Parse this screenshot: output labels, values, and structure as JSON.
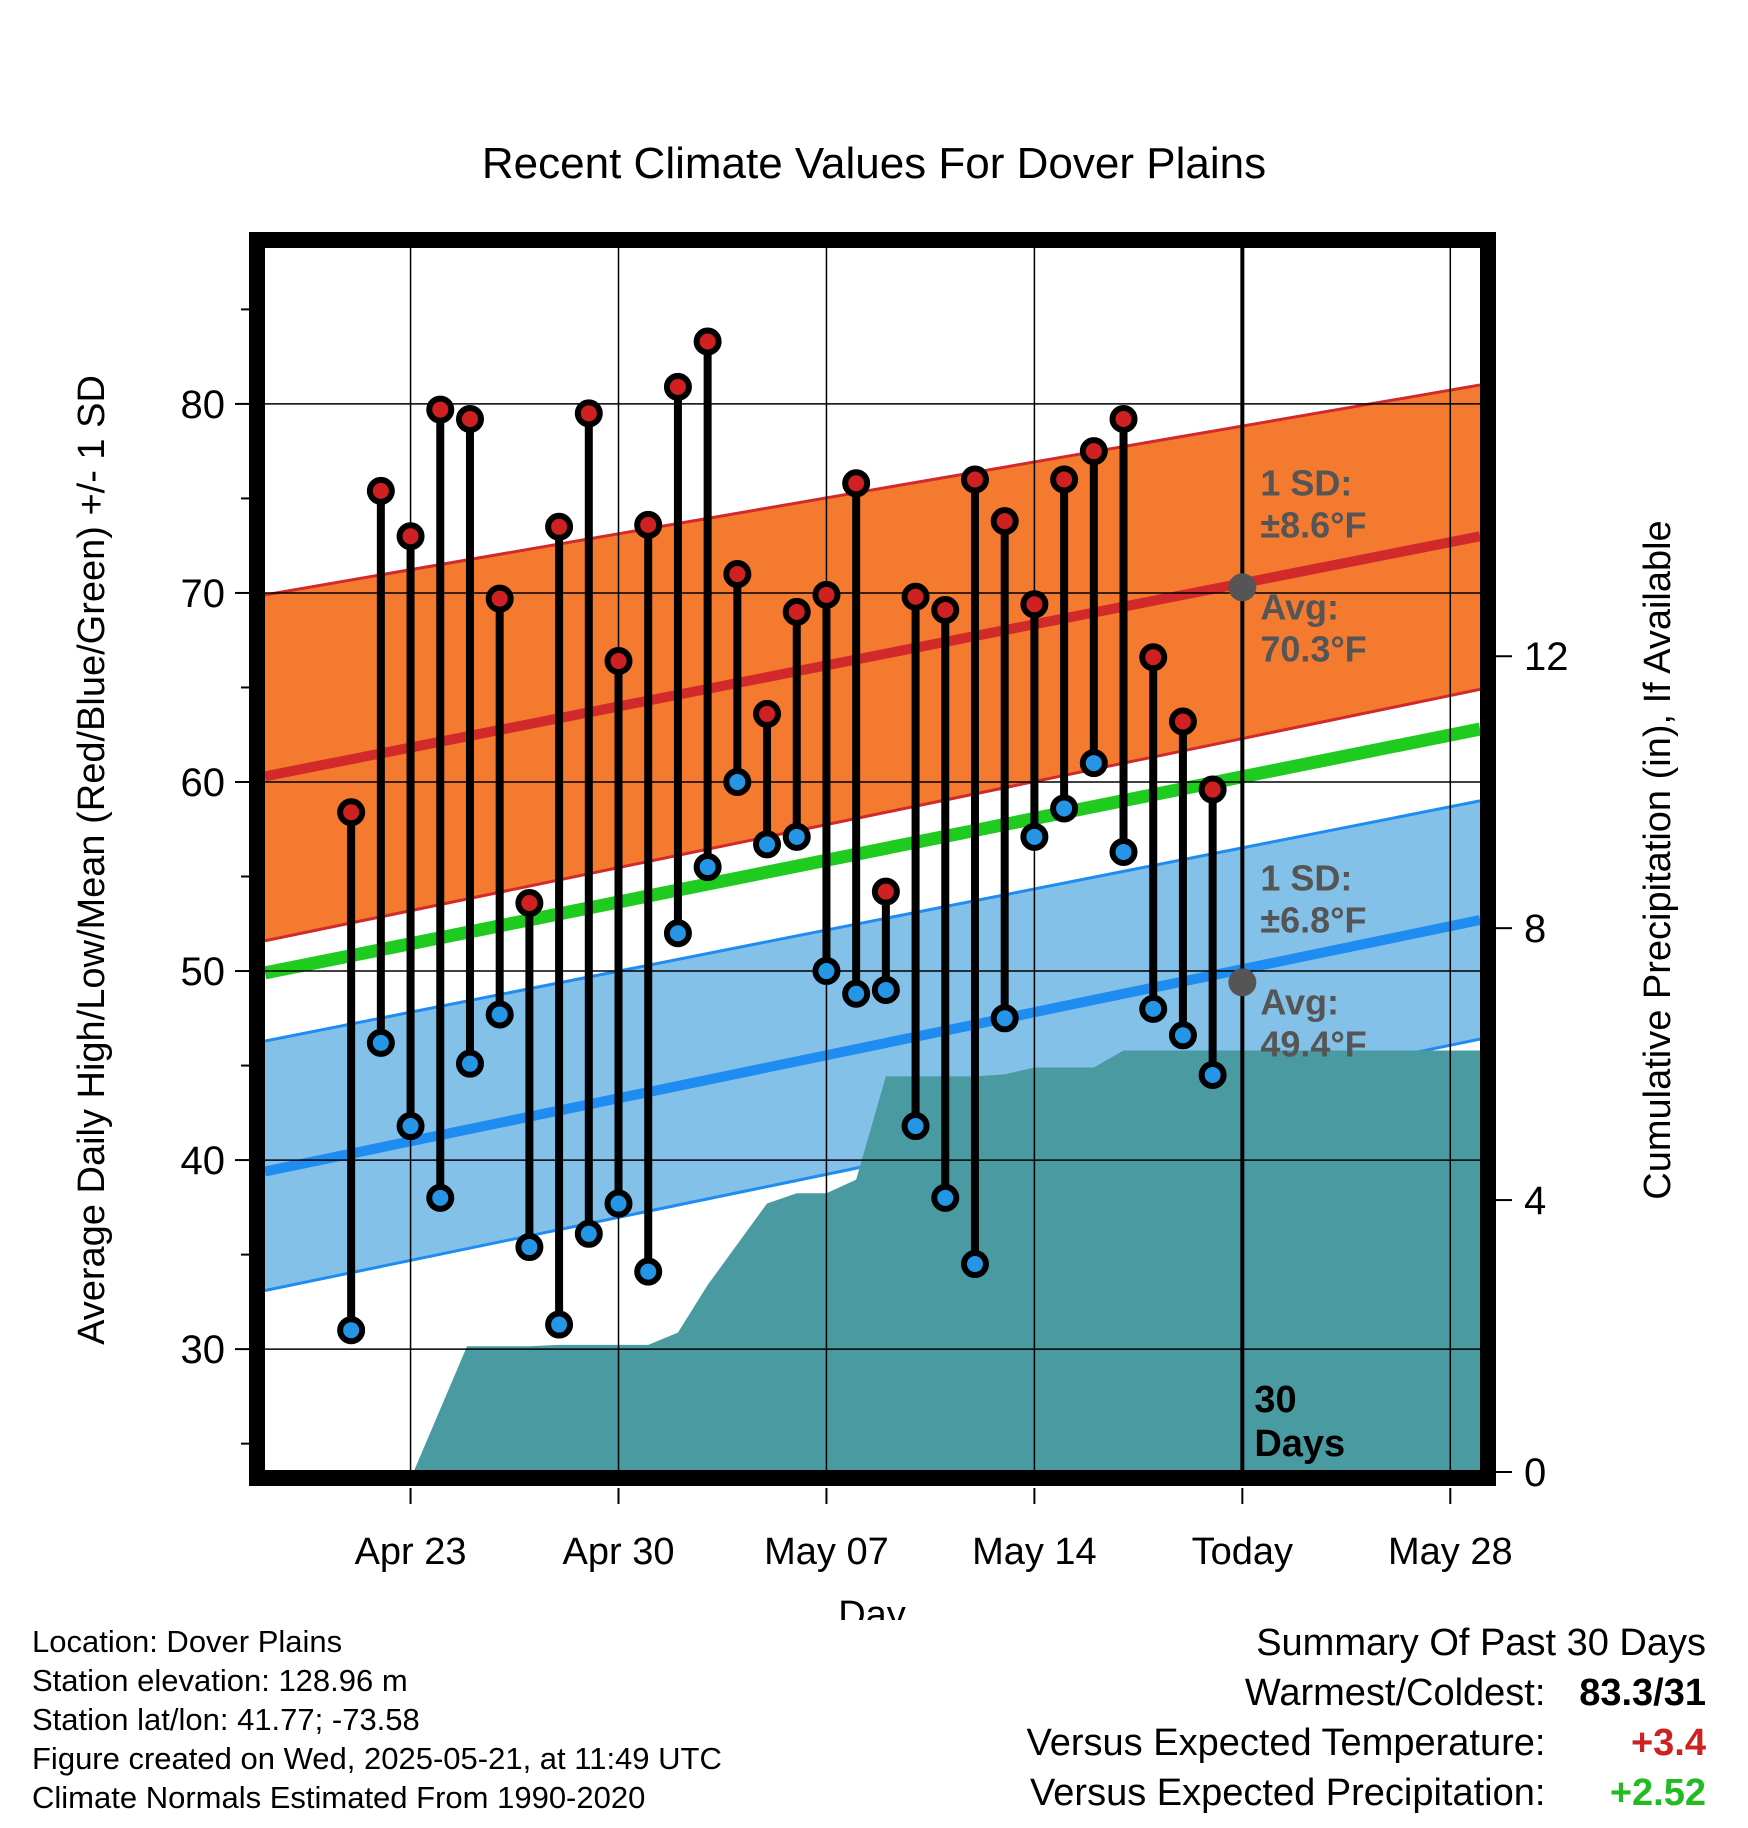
{
  "title": "Recent Climate Values For Dover Plains",
  "colors": {
    "high_band": "#f47a30",
    "high_line": "#d22a2a",
    "low_band": "#83c1e8",
    "low_line": "#1e8cf0",
    "mean_line": "#1ecb1e",
    "precip": "#4a9aa2",
    "high_marker": "#cf2121",
    "low_marker": "#2596e6",
    "stat_marker": "#555555",
    "annot_text": "#555555",
    "positive_temp": "#cf2121",
    "positive_precip": "#22bb22"
  },
  "chart_data": {
    "type": "line",
    "title": "Recent Climate Values For Dover Plains",
    "xlabel": "Day",
    "ylabel": "Average Daily High/Low/Mean (Red/Blue/Green) +/- 1 SD",
    "y2label": "Cumulative Precipitation (in), If Available",
    "xlim": [
      -2.9,
      38.0
    ],
    "ylim": [
      23.5,
      88.3
    ],
    "y2lim": [
      0,
      18.02
    ],
    "grid": true,
    "x_unit": "days relative to Apr 21",
    "x_ticks": [
      {
        "x": 2,
        "label": "Apr 23"
      },
      {
        "x": 9,
        "label": "Apr 30"
      },
      {
        "x": 16,
        "label": "May 07"
      },
      {
        "x": 23,
        "label": "May 14"
      },
      {
        "x": 30,
        "label": "Today"
      },
      {
        "x": 37,
        "label": "May 28"
      }
    ],
    "y_ticks": [
      30,
      40,
      50,
      60,
      70,
      80
    ],
    "y2_ticks": [
      0,
      4,
      8,
      12
    ],
    "today_x": 30,
    "today_label": "30 Days",
    "normals": {
      "x": [
        -2.9,
        38.0
      ],
      "high_avg": [
        60.3,
        73.0
      ],
      "high_upper": [
        69.9,
        81.0
      ],
      "high_lower": [
        51.6,
        64.9
      ],
      "low_avg": [
        39.4,
        52.7
      ],
      "low_upper": [
        46.3,
        59.0
      ],
      "low_lower": [
        33.1,
        46.4
      ],
      "mean": [
        49.9,
        62.8
      ]
    },
    "annotations": [
      {
        "x": 30,
        "y": 70.3,
        "sd_label": "1 SD:",
        "sd_value": "±8.6°F",
        "avg_label": "Avg:",
        "avg_value": "70.3°F"
      },
      {
        "x": 30,
        "y": 49.4,
        "sd_label": "1 SD:",
        "sd_value": "±6.8°F",
        "avg_label": "Avg:",
        "avg_value": "49.4°F"
      }
    ],
    "daily": {
      "x": [
        0,
        1,
        2,
        3,
        4,
        5,
        6,
        7,
        8,
        9,
        10,
        11,
        12,
        13,
        14,
        15,
        16,
        17,
        18,
        19,
        20,
        21,
        22,
        23,
        24,
        25,
        26,
        27,
        28,
        29
      ],
      "high": [
        58.4,
        75.4,
        73.0,
        79.7,
        79.2,
        69.7,
        53.6,
        73.5,
        79.5,
        66.4,
        73.6,
        80.9,
        83.3,
        71.0,
        63.6,
        69.0,
        69.9,
        75.8,
        54.2,
        69.8,
        69.1,
        76.0,
        73.8,
        69.4,
        76.0,
        77.5,
        79.2,
        66.6,
        63.2,
        59.6
      ],
      "low": [
        31.0,
        46.2,
        41.8,
        38.0,
        45.1,
        47.7,
        35.4,
        31.3,
        36.1,
        37.7,
        34.1,
        52.0,
        55.5,
        60.0,
        56.7,
        57.1,
        50.0,
        48.8,
        49.0,
        41.8,
        38.0,
        34.5,
        47.5,
        57.1,
        58.6,
        61.0,
        56.3,
        48.0,
        46.6,
        44.5
      ]
    },
    "precipitation": {
      "x": [
        -2.9,
        2.0,
        2.1,
        3.9,
        5.0,
        6.0,
        7.0,
        8.0,
        9.0,
        10.0,
        11.0,
        12.0,
        13.0,
        14.0,
        15.0,
        16.0,
        17.0,
        18.0,
        19.0,
        20.0,
        21.0,
        22.0,
        23.0,
        24.0,
        25.0,
        26.0,
        38.0
      ],
      "y": [
        0,
        0,
        0,
        1.85,
        1.85,
        1.85,
        1.87,
        1.87,
        1.87,
        1.87,
        2.05,
        2.75,
        3.35,
        3.95,
        4.1,
        4.1,
        4.3,
        5.82,
        5.82,
        5.82,
        5.82,
        5.85,
        5.95,
        5.95,
        5.95,
        6.2,
        6.2
      ]
    }
  },
  "info": {
    "location": "Location: Dover Plains",
    "elevation": "Station elevation: 128.96 m",
    "latlon": "Station lat/lon: 41.77; -73.58",
    "created": "Figure created on Wed, 2025-05-21, at 11:49 UTC",
    "normals": "Climate Normals Estimated From 1990-2020"
  },
  "summary": {
    "heading": "Summary Of Past 30 Days",
    "warmest_label": "Warmest/Coldest:",
    "warmest_value": "83.3/31",
    "temp_label": "Versus Expected Temperature:",
    "temp_value": "+3.4",
    "precip_label": "Versus Expected Precipitation:",
    "precip_value": "+2.52"
  }
}
